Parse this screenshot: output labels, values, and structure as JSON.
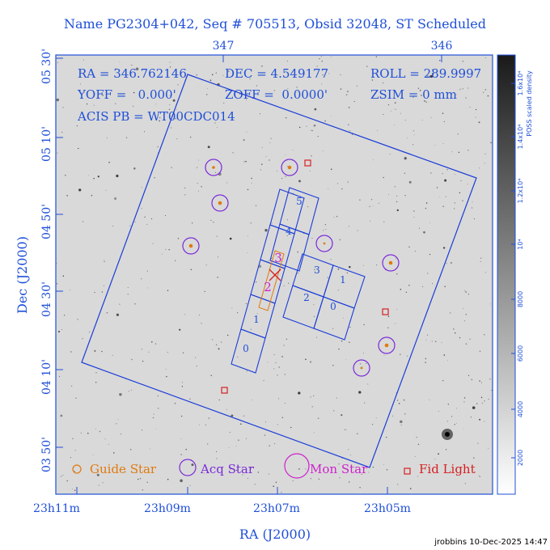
{
  "title": "Name PG2304+042, Seq # 705513, Obsid 32048, ST Scheduled",
  "info": {
    "ra": "RA = 346.762146",
    "dec": "DEC = 4.549177",
    "roll": "ROLL = 289.9997",
    "yoff": "YOFF =   0.000'",
    "zoff": "ZOFF =  0.0000'",
    "zsim": "ZSIM = 0 mm",
    "acis": "ACIS PB = WT00CDC014"
  },
  "axes": {
    "xlabel": "RA (J2000)",
    "ylabel": "Dec (J2000)",
    "x_bottom_ticks": [
      "23h11m",
      "23h09m",
      "23h07m",
      "23h05m"
    ],
    "x_top_ticks": [
      "347",
      "346"
    ],
    "y_ticks": [
      "05 30'",
      "05 10'",
      "04 50'",
      "04 30'",
      "04 10'",
      "03 50'"
    ]
  },
  "colorbar": {
    "label": "POSS scaled density",
    "ticks": [
      "2000",
      "4000",
      "6000",
      "8000",
      "10⁴",
      "1.2x10⁴",
      "1.4x10⁴",
      "1.6x10⁴"
    ]
  },
  "ccds": {
    "acis_s": [
      "0",
      "1",
      "2",
      "3",
      "4",
      "5"
    ],
    "acis_i": [
      "0",
      "1",
      "2",
      "3"
    ]
  },
  "legend": {
    "guide": "Guide Star",
    "acq": "Acq Star",
    "mon": "Mon Star",
    "fid": "Fid Light"
  },
  "footer": "jrobbins 10-Dec-2025 14:47",
  "colors": {
    "title_blue": "#1f4fd8",
    "fov_blue": "#1a3cd8",
    "acq_purple": "#7a2ad8",
    "mon_magenta": "#cc22cc",
    "guide_orange": "#e07a10",
    "fid_red": "#d62020"
  }
}
